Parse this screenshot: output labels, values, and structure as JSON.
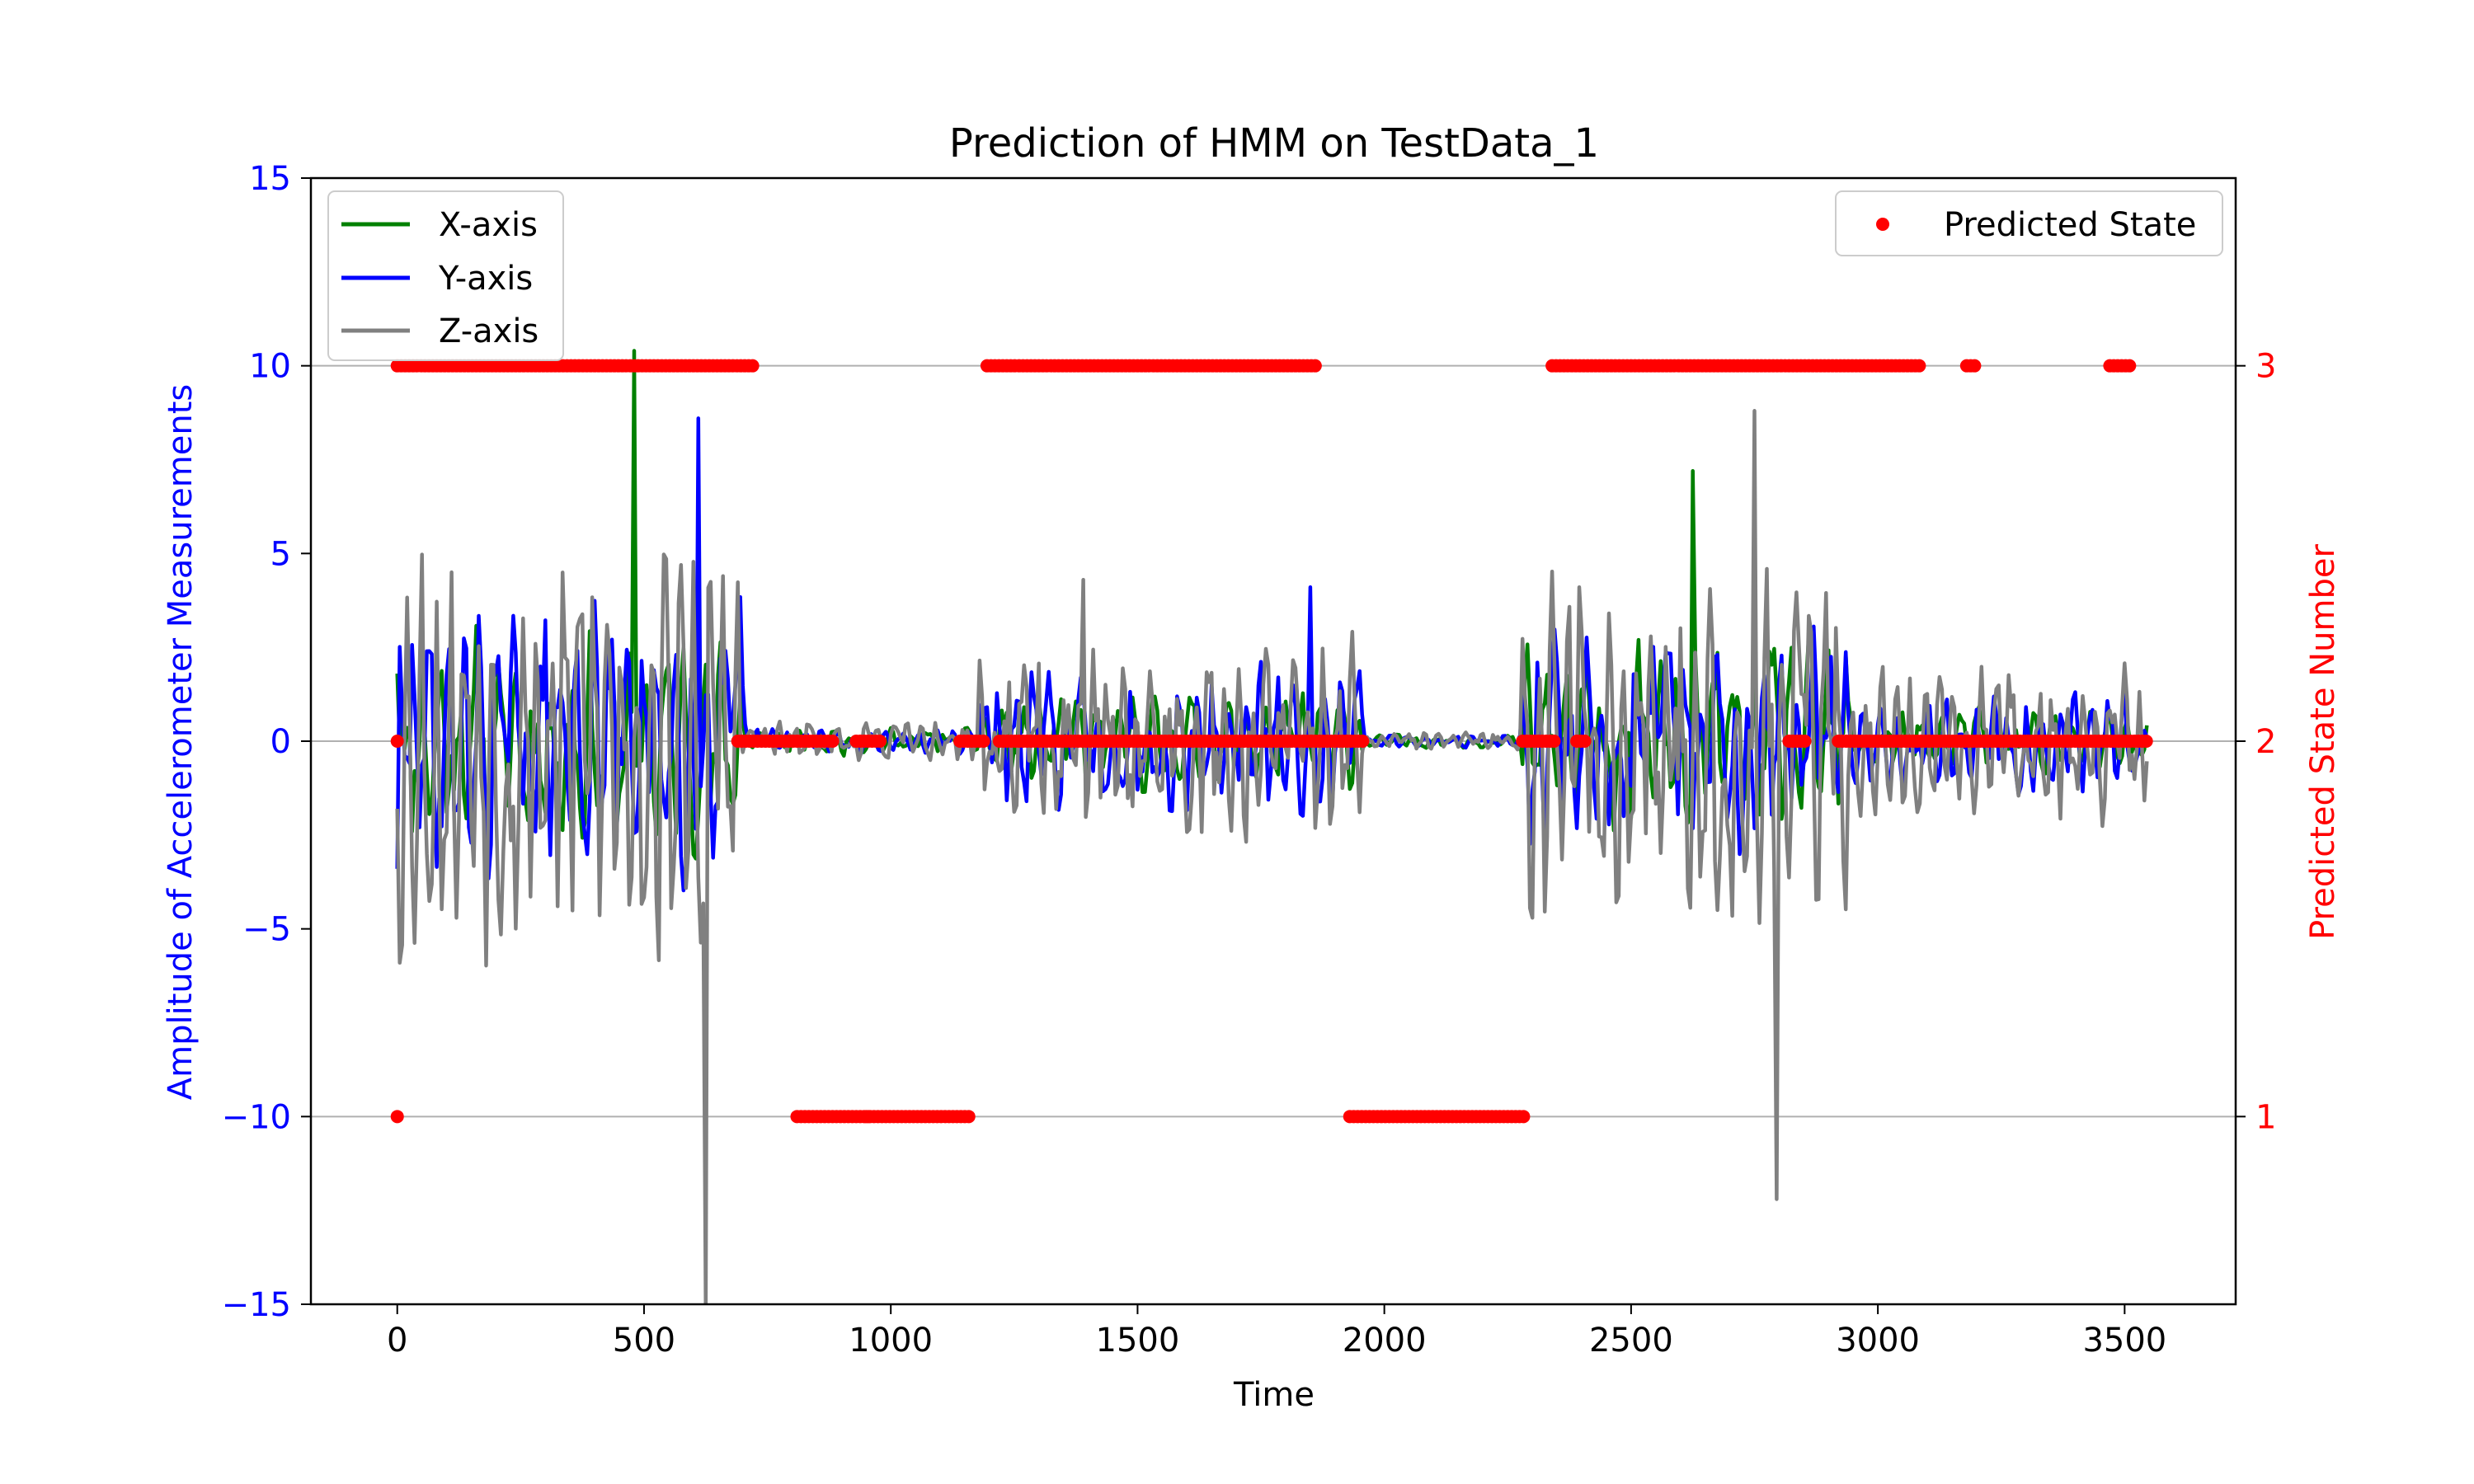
{
  "chart_data": {
    "type": "line",
    "title": "Prediction of HMM on TestData_1",
    "xlabel": "Time",
    "ylabel": "Amplitude of Accelerometer Measurements",
    "y2label": "Predicted State Number",
    "xlim": [
      -175,
      3725
    ],
    "ylim": [
      -15,
      15
    ],
    "y2lim": [
      0.5,
      3.5
    ],
    "xticks": [
      0,
      500,
      1000,
      1500,
      2000,
      2500,
      3000,
      3500
    ],
    "yticks": [
      -15,
      -10,
      -5,
      0,
      5,
      10,
      15
    ],
    "y2ticks": [
      1,
      2,
      3
    ],
    "y_tick_labels": [
      "−15",
      "−10",
      "−5",
      "0",
      "5",
      "10",
      "15"
    ],
    "grid": "right-axis horizontal lines at states 1, 2, 3",
    "colors": {
      "x_axis": "#008000",
      "y_axis": "#0000ff",
      "z_axis": "#808080",
      "predicted": "#ff0000",
      "left_axis": "#0000ff",
      "right_axis": "#ff0000"
    },
    "legend_left": {
      "placement": "upper-left",
      "entries": [
        "X-axis",
        "Y-axis",
        "Z-axis"
      ]
    },
    "legend_right": {
      "placement": "upper-right",
      "entries": [
        "Predicted State"
      ]
    },
    "signal_segments": [
      {
        "start": 0,
        "end": 700,
        "x_amp": 3.5,
        "y_amp": 4.5,
        "z_amp": 7.0
      },
      {
        "start": 700,
        "end": 1180,
        "x_amp": 0.4,
        "y_amp": 0.4,
        "z_amp": 0.7
      },
      {
        "start": 1180,
        "end": 1960,
        "x_amp": 1.5,
        "y_amp": 2.2,
        "z_amp": 3.2
      },
      {
        "start": 1960,
        "end": 2280,
        "x_amp": 0.2,
        "y_amp": 0.2,
        "z_amp": 0.3
      },
      {
        "start": 2280,
        "end": 2940,
        "x_amp": 3.0,
        "y_amp": 3.5,
        "z_amp": 6.0
      },
      {
        "start": 2940,
        "end": 3545,
        "x_amp": 1.0,
        "y_amp": 1.5,
        "z_amp": 2.5
      }
    ],
    "signal_peaks": [
      {
        "t": 480,
        "series": "x",
        "v": 10.4
      },
      {
        "t": 625,
        "series": "z",
        "v": -15.2
      },
      {
        "t": 610,
        "series": "y",
        "v": 8.6
      },
      {
        "t": 2625,
        "series": "x",
        "v": 7.2
      },
      {
        "t": 2750,
        "series": "z",
        "v": 8.8
      },
      {
        "t": 2795,
        "series": "z",
        "v": -12.2
      },
      {
        "t": 1850,
        "series": "y",
        "v": 4.1
      },
      {
        "t": 1390,
        "series": "z",
        "v": 4.3
      }
    ],
    "predicted_state_runs": [
      {
        "state": 1,
        "start": 0,
        "end": 0
      },
      {
        "state": 2,
        "start": 0,
        "end": 0
      },
      {
        "state": 3,
        "start": 0,
        "end": 725
      },
      {
        "state": 2,
        "start": 690,
        "end": 885
      },
      {
        "state": 1,
        "start": 810,
        "end": 960
      },
      {
        "state": 2,
        "start": 930,
        "end": 980
      },
      {
        "state": 1,
        "start": 950,
        "end": 1160
      },
      {
        "state": 2,
        "start": 1140,
        "end": 1195
      },
      {
        "state": 3,
        "start": 1195,
        "end": 1255
      },
      {
        "state": 2,
        "start": 1220,
        "end": 1960
      },
      {
        "state": 3,
        "start": 1260,
        "end": 1860
      },
      {
        "state": 1,
        "start": 1930,
        "end": 2285
      },
      {
        "state": 2,
        "start": 2280,
        "end": 2345
      },
      {
        "state": 3,
        "start": 2340,
        "end": 3085
      },
      {
        "state": 2,
        "start": 2390,
        "end": 2410
      },
      {
        "state": 2,
        "start": 2820,
        "end": 2855
      },
      {
        "state": 2,
        "start": 2920,
        "end": 3545
      },
      {
        "state": 3,
        "start": 3180,
        "end": 3200
      },
      {
        "state": 3,
        "start": 3470,
        "end": 3515
      }
    ]
  }
}
